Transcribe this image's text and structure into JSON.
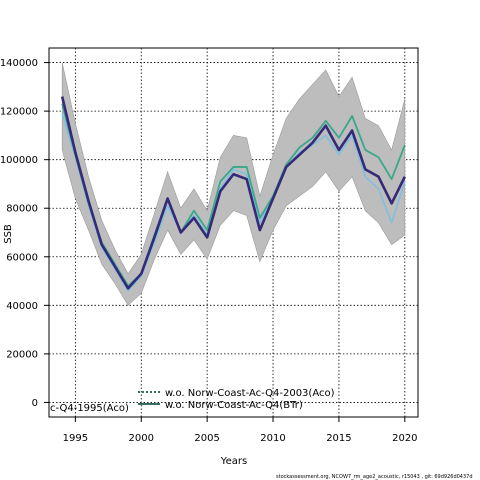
{
  "chart_data": {
    "type": "line",
    "xlabel": "Years",
    "ylabel": "SSB",
    "xlim": [
      1993,
      2021
    ],
    "ylim": [
      -6000,
      146000
    ],
    "xticks": [
      1995,
      2000,
      2005,
      2010,
      2015,
      2020
    ],
    "yticks": [
      0,
      20000,
      40000,
      60000,
      80000,
      100000,
      120000,
      140000
    ],
    "ytick_labels": [
      "0",
      "20000",
      "40000",
      "60000",
      "80000",
      "100000",
      "120000",
      "140000"
    ],
    "grid": true,
    "x": [
      1994,
      1995,
      1996,
      1997,
      1998,
      1999,
      2000,
      2001,
      2002,
      2003,
      2004,
      2005,
      2006,
      2007,
      2008,
      2009,
      2010,
      2011,
      2012,
      2013,
      2014,
      2015,
      2016,
      2017,
      2018,
      2019,
      2020
    ],
    "band": {
      "upper": [
        140000,
        115000,
        93000,
        75000,
        63000,
        53000,
        61000,
        78000,
        95000,
        80000,
        88000,
        79000,
        101000,
        110000,
        109000,
        85000,
        102000,
        117000,
        125000,
        131000,
        137000,
        126000,
        134000,
        117000,
        114000,
        104000,
        125000
      ],
      "lower": [
        104000,
        84000,
        71000,
        57000,
        49000,
        40000,
        45000,
        59000,
        71000,
        61000,
        67000,
        59000,
        73000,
        79000,
        77000,
        58000,
        71000,
        81000,
        85000,
        89000,
        95000,
        87000,
        93000,
        79000,
        74000,
        65000,
        69000
      ]
    },
    "series": [
      {
        "name": "",
        "color": "#352a78",
        "width": 2.6,
        "values": [
          126000,
          103000,
          83000,
          65000,
          56000,
          47000,
          53000,
          68000,
          84000,
          70000,
          76000,
          68000,
          87000,
          94000,
          92000,
          71000,
          84000,
          97000,
          102000,
          107000,
          114000,
          104000,
          112000,
          96000,
          93000,
          82000,
          93000
        ]
      },
      {
        "name": "",
        "color": "#3aa88a",
        "width": 1.8,
        "values": [
          123000,
          102000,
          82000,
          66000,
          57000,
          48000,
          53000,
          69000,
          84000,
          70000,
          79000,
          71000,
          91000,
          97000,
          97000,
          76000,
          85000,
          98000,
          105000,
          109000,
          116000,
          109000,
          118000,
          104000,
          101000,
          92000,
          106000
        ]
      },
      {
        "name": "",
        "color": "#7fbfe0",
        "width": 1.6,
        "values": [
          119000,
          101000,
          81000,
          64000,
          55000,
          46000,
          52000,
          66000,
          81000,
          70000,
          77000,
          69000,
          88000,
          96000,
          94000,
          74000,
          85000,
          97000,
          103000,
          106000,
          110000,
          102000,
          110000,
          93000,
          88000,
          74000,
          91000
        ]
      }
    ],
    "legend": [
      {
        "label": "c-Q4-1995(Aco)",
        "color": "#3aa88a",
        "style": "solid"
      },
      {
        "label": "w.o. Norw-Coast-Ac-Q4-2003(Aco)",
        "color": "#1a5a4a",
        "style": "dotted"
      },
      {
        "label": "w.o. Norw-Coast-Ac-Q4(BTr)",
        "color": "#1a5a4a",
        "style": "solid"
      }
    ],
    "legend_position": "bottom"
  },
  "footer": "stockassessment.org, NCOW7_rm_age2_acoustic, r15043 , git: 69d926d0437d"
}
